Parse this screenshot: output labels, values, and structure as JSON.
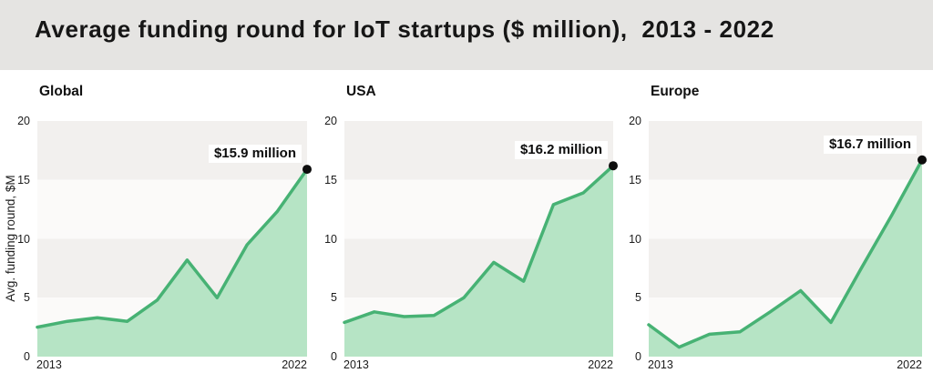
{
  "header": {
    "title": "Average funding round for IoT startups ($ million),  2013 - 2022"
  },
  "charts_shared": {
    "y_axis_title": "Avg. funding round, $M",
    "x_first": "2013",
    "x_last": "2022"
  },
  "colors": {
    "header_bg": "#e5e4e2",
    "line": "#47b274",
    "area_fill": "#b6e4c5",
    "dot": "#0d0d0d",
    "band_gray": "#f2f0ee",
    "band_light": "#fbfaf9",
    "annotation_bg": "#ffffff",
    "text": "#111111"
  },
  "chart_data": [
    {
      "type": "area",
      "title": "Global",
      "x": [
        2013,
        2014,
        2015,
        2016,
        2017,
        2018,
        2019,
        2020,
        2021,
        2022
      ],
      "values": [
        2.5,
        3.0,
        3.3,
        3.0,
        4.8,
        8.2,
        5.0,
        9.5,
        12.3,
        15.9
      ],
      "annotation": "$15.9 million",
      "ylabel": "Avg. funding round, $M",
      "xlabel": "",
      "ylim": [
        0,
        20
      ],
      "y_ticks": [
        0,
        5,
        10,
        15,
        20
      ],
      "x_tick_labels": [
        "2013",
        "2022"
      ],
      "grid": "horizontal-bands-every-5",
      "legend": "none"
    },
    {
      "type": "area",
      "title": "USA",
      "x": [
        2013,
        2014,
        2015,
        2016,
        2017,
        2018,
        2019,
        2020,
        2021,
        2022
      ],
      "values": [
        2.9,
        3.8,
        3.4,
        3.5,
        5.0,
        8.0,
        6.4,
        12.9,
        13.9,
        16.2
      ],
      "annotation": "$16.2 million",
      "ylabel": "",
      "xlabel": "",
      "ylim": [
        0,
        20
      ],
      "y_ticks": [
        0,
        5,
        10,
        15,
        20
      ],
      "x_tick_labels": [
        "2013",
        "2022"
      ],
      "grid": "horizontal-bands-every-5",
      "legend": "none"
    },
    {
      "type": "area",
      "title": "Europe",
      "x": [
        2013,
        2014,
        2015,
        2016,
        2017,
        2018,
        2019,
        2020,
        2021,
        2022
      ],
      "values": [
        2.7,
        0.8,
        1.9,
        2.1,
        3.8,
        5.6,
        2.9,
        7.5,
        12.0,
        16.7
      ],
      "annotation": "$16.7 million",
      "ylabel": "",
      "xlabel": "",
      "ylim": [
        0,
        20
      ],
      "y_ticks": [
        0,
        5,
        10,
        15,
        20
      ],
      "x_tick_labels": [
        "2013",
        "2022"
      ],
      "grid": "horizontal-bands-every-5",
      "legend": "none"
    }
  ]
}
